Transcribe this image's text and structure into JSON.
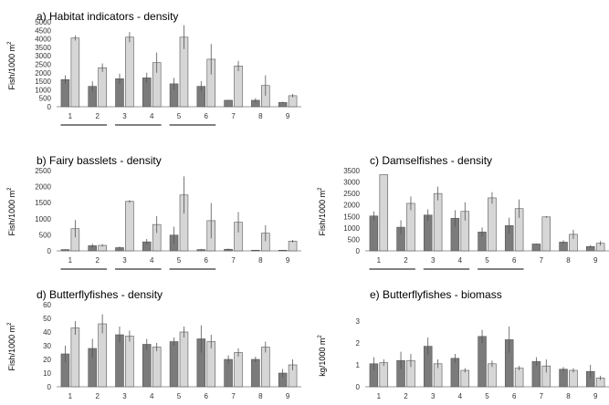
{
  "chart_data": [
    {
      "type": "bar",
      "title": "a) Habitat indicators - density",
      "ylabel": "Fish/1000 m",
      "ylabel_sup": "2",
      "categories": [
        "1",
        "2",
        "3",
        "4",
        "5",
        "6",
        "7",
        "8",
        "9"
      ],
      "ylim": [
        0,
        5000
      ],
      "yticks": [
        0,
        500,
        1000,
        1500,
        2000,
        2500,
        3000,
        3500,
        4000,
        4500,
        5000
      ],
      "series": [
        {
          "values": [
            1600,
            1200,
            1650,
            1700,
            1350,
            1200,
            380,
            380,
            250
          ],
          "errors": [
            250,
            300,
            300,
            300,
            350,
            300,
            30,
            120,
            40
          ]
        },
        {
          "values": [
            4050,
            2300,
            4100,
            2600,
            4100,
            2800,
            2400,
            1250,
            650
          ],
          "errors": [
            150,
            250,
            300,
            600,
            700,
            900,
            300,
            600,
            100
          ]
        }
      ],
      "underlines": [
        [
          1,
          2
        ],
        [
          3,
          4
        ],
        [
          5,
          6
        ]
      ],
      "colors": {
        "dark": "#7b7b7b",
        "light": "#d6d6d6",
        "error": "#555555"
      }
    },
    {
      "type": "bar",
      "title": "b) Fairy basslets - density",
      "ylabel": "Fish/1000 m",
      "ylabel_sup": "2",
      "categories": [
        "1",
        "2",
        "3",
        "4",
        "5",
        "6",
        "7",
        "8",
        "9"
      ],
      "ylim": [
        0,
        2500
      ],
      "yticks": [
        0,
        500,
        1000,
        1500,
        2000,
        2500
      ],
      "series": [
        {
          "values": [
            40,
            160,
            100,
            280,
            490,
            40,
            50,
            20,
            20
          ],
          "errors": [
            10,
            60,
            30,
            90,
            260,
            20,
            20,
            10,
            10
          ]
        },
        {
          "values": [
            690,
            170,
            1540,
            820,
            1740,
            940,
            890,
            550,
            300
          ],
          "errors": [
            270,
            40,
            40,
            260,
            580,
            550,
            320,
            250,
            40
          ]
        }
      ],
      "underlines": [
        [
          1,
          2
        ],
        [
          3,
          4
        ],
        [
          5,
          6
        ]
      ],
      "colors": {
        "dark": "#7b7b7b",
        "light": "#d6d6d6",
        "error": "#555555"
      }
    },
    {
      "type": "bar",
      "title": "c) Damselfishes - density",
      "ylabel": "Fish/1000 m",
      "ylabel_sup": "2",
      "categories": [
        "1",
        "2",
        "3",
        "4",
        "5",
        "6",
        "7",
        "8",
        "9"
      ],
      "ylim": [
        0,
        3500
      ],
      "yticks": [
        0,
        500,
        1000,
        1500,
        2000,
        2500,
        3000,
        3500
      ],
      "series": [
        {
          "values": [
            1520,
            1030,
            1560,
            1420,
            820,
            1100,
            300,
            380,
            190
          ],
          "errors": [
            200,
            300,
            250,
            350,
            200,
            350,
            20,
            80,
            60
          ]
        },
        {
          "values": [
            3320,
            2070,
            2500,
            1720,
            2310,
            1840,
            1480,
            720,
            330
          ],
          "errors": [
            0,
            300,
            300,
            400,
            250,
            400,
            40,
            200,
            100
          ]
        }
      ],
      "underlines": [
        [
          1,
          2
        ],
        [
          3,
          4
        ],
        [
          5,
          6
        ]
      ],
      "colors": {
        "dark": "#7b7b7b",
        "light": "#d6d6d6",
        "error": "#555555"
      }
    },
    {
      "type": "bar",
      "title": "d) Butterflyfishes - density",
      "ylabel": "Fish/1000 m",
      "ylabel_sup": "2",
      "categories": [
        "1",
        "2",
        "3",
        "4",
        "5",
        "6",
        "7",
        "8",
        "9"
      ],
      "ylim": [
        0,
        60
      ],
      "yticks": [
        0,
        10,
        20,
        30,
        40,
        50,
        60
      ],
      "series": [
        {
          "values": [
            24,
            28,
            38,
            31,
            33,
            35,
            20,
            20,
            10
          ],
          "errors": [
            6,
            7,
            6,
            4,
            3,
            10,
            3,
            2,
            3
          ]
        },
        {
          "values": [
            43,
            46,
            37,
            29,
            40,
            33,
            25,
            29,
            16
          ],
          "errors": [
            5,
            7,
            4,
            3,
            4,
            5,
            3,
            4,
            4
          ]
        }
      ],
      "underlines": [
        [
          1,
          2
        ],
        [
          3,
          4
        ],
        [
          5,
          6
        ]
      ],
      "colors": {
        "dark": "#7b7b7b",
        "light": "#d6d6d6",
        "error": "#555555"
      }
    },
    {
      "type": "bar",
      "title": "e) Butterflyfishes - biomass",
      "ylabel": "kg/1000 m",
      "ylabel_sup": "2",
      "categories": [
        "1",
        "2",
        "3",
        "4",
        "5",
        "6",
        "7",
        "8",
        "9"
      ],
      "ylim": [
        0,
        3
      ],
      "yticks": [
        0,
        1,
        2,
        3
      ],
      "series": [
        {
          "values": [
            1.05,
            1.2,
            1.85,
            1.3,
            2.3,
            2.15,
            1.15,
            0.8,
            0.7
          ],
          "errors": [
            0.3,
            0.4,
            0.4,
            0.2,
            0.3,
            0.6,
            0.2,
            0.1,
            0.3
          ]
        },
        {
          "values": [
            1.1,
            1.2,
            1.05,
            0.75,
            1.05,
            0.85,
            0.95,
            0.75,
            0.4
          ],
          "errors": [
            0.15,
            0.3,
            0.2,
            0.1,
            0.15,
            0.1,
            0.3,
            0.1,
            0.1
          ]
        }
      ],
      "underlines": [
        [
          1,
          2
        ],
        [
          3,
          4
        ],
        [
          5,
          6
        ]
      ],
      "colors": {
        "dark": "#7b7b7b",
        "light": "#d6d6d6",
        "error": "#555555"
      }
    }
  ]
}
